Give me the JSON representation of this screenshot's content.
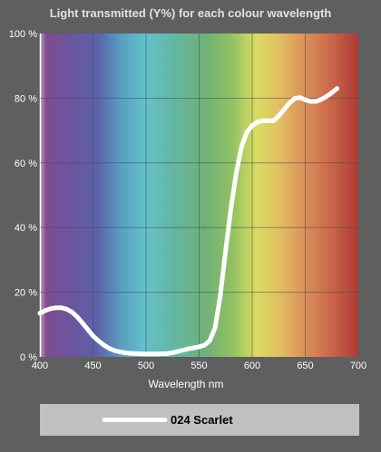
{
  "chart_data": {
    "type": "line",
    "title": "Light transmitted (Y%) for each colour wavelength",
    "xlabel": "Wavelength nm",
    "ylabel": "",
    "xlim": [
      400,
      700
    ],
    "ylim": [
      0,
      100
    ],
    "x_ticks": [
      "400",
      "450",
      "500",
      "550",
      "600",
      "650",
      "700"
    ],
    "y_ticks": [
      "0 %",
      "20 %",
      "40 %",
      "60 %",
      "80 %",
      "100 %"
    ],
    "grid": true,
    "legend_position": "bottom",
    "series": [
      {
        "name": "024 Scarlet",
        "color": "#ffffff",
        "points": [
          [
            400,
            13.5
          ],
          [
            405,
            14.3
          ],
          [
            410,
            14.9
          ],
          [
            415,
            15.2
          ],
          [
            420,
            15.2
          ],
          [
            425,
            14.8
          ],
          [
            430,
            13.9
          ],
          [
            435,
            12.4
          ],
          [
            440,
            10.5
          ],
          [
            445,
            8.5
          ],
          [
            450,
            6.5
          ],
          [
            455,
            5.0
          ],
          [
            460,
            3.7
          ],
          [
            465,
            2.7
          ],
          [
            470,
            2.0
          ],
          [
            475,
            1.6
          ],
          [
            480,
            1.3
          ],
          [
            485,
            1.1
          ],
          [
            490,
            1.0
          ],
          [
            500,
            0.9
          ],
          [
            510,
            0.9
          ],
          [
            520,
            1.0
          ],
          [
            525,
            1.3
          ],
          [
            530,
            1.7
          ],
          [
            535,
            2.1
          ],
          [
            540,
            2.5
          ],
          [
            545,
            2.8
          ],
          [
            550,
            3.1
          ],
          [
            555,
            3.6
          ],
          [
            560,
            5.0
          ],
          [
            565,
            9.0
          ],
          [
            570,
            19.0
          ],
          [
            575,
            33.0
          ],
          [
            580,
            46.0
          ],
          [
            585,
            57.0
          ],
          [
            590,
            65.0
          ],
          [
            595,
            69.5
          ],
          [
            600,
            71.5
          ],
          [
            605,
            72.7
          ],
          [
            610,
            73.0
          ],
          [
            620,
            73.0
          ],
          [
            625,
            74.5
          ],
          [
            630,
            76.5
          ],
          [
            635,
            78.5
          ],
          [
            640,
            79.9
          ],
          [
            645,
            80.2
          ],
          [
            650,
            79.5
          ],
          [
            655,
            79.0
          ],
          [
            660,
            79.0
          ],
          [
            665,
            79.6
          ],
          [
            670,
            80.5
          ],
          [
            675,
            81.7
          ],
          [
            680,
            83.0
          ]
        ]
      }
    ]
  }
}
